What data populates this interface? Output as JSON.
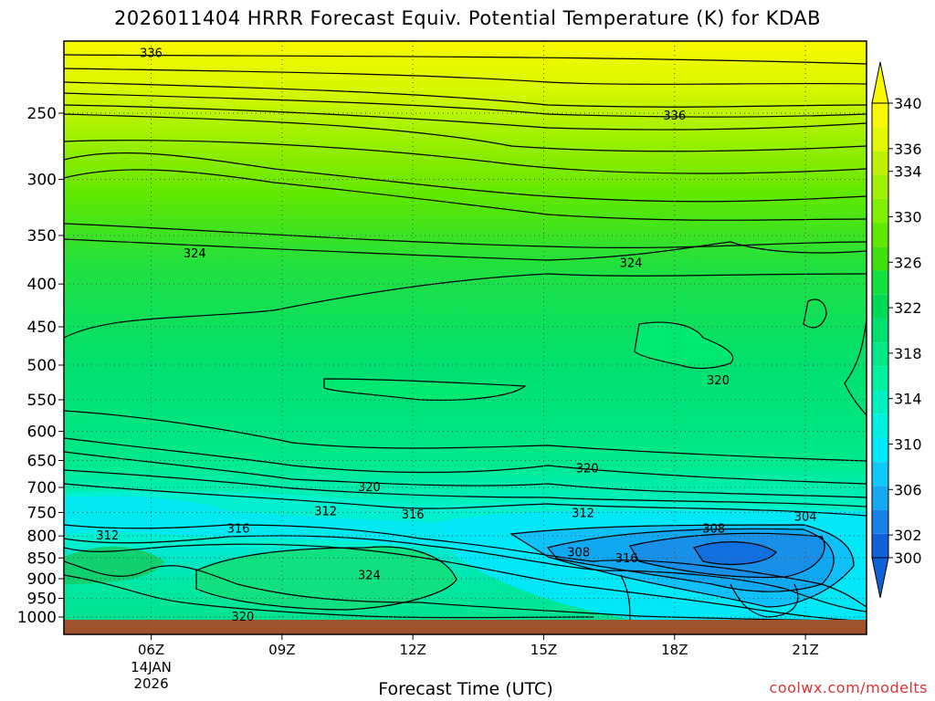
{
  "chart_data": {
    "type": "heatmap",
    "title": "2026011404 HRRR Forecast Equiv. Potential Temperature (K) for KDAB",
    "xlabel": "Forecast Time (UTC)",
    "ylabel": "",
    "y_axis_scale": "log (pressure, hPa), inverted",
    "ylim": [
      1000,
      200
    ],
    "y_ticks": [
      250,
      300,
      350,
      400,
      450,
      500,
      550,
      600,
      650,
      700,
      750,
      800,
      850,
      900,
      950,
      1000
    ],
    "x_ticks": [
      {
        "label": "06Z",
        "sub": "14JAN",
        "sub2": "2026"
      },
      {
        "label": "09Z"
      },
      {
        "label": "12Z"
      },
      {
        "label": "15Z"
      },
      {
        "label": "18Z"
      },
      {
        "label": "21Z"
      }
    ],
    "grid": "dotted",
    "colorbar": {
      "placement": "right",
      "levels": [
        300,
        302,
        304,
        306,
        308,
        310,
        312,
        314,
        316,
        318,
        320,
        322,
        324,
        326,
        328,
        330,
        332,
        334,
        336,
        338,
        340
      ],
      "tick_labels": [
        300,
        302,
        306,
        310,
        314,
        318,
        322,
        326,
        330,
        334,
        336,
        340
      ],
      "colors": [
        "#1060d8",
        "#1880e8",
        "#18a8f0",
        "#10c8f8",
        "#00e8f8",
        "#00f0e0",
        "#00f0c0",
        "#00f0a0",
        "#00e888",
        "#00e070",
        "#00d858",
        "#10e040",
        "#40e010",
        "#60e800",
        "#80f000",
        "#a0f000",
        "#c0f000",
        "#e0f800",
        "#f8f800"
      ],
      "extend": "both"
    },
    "contour_labels": [
      {
        "value": "336",
        "t": 6,
        "p": 212
      },
      {
        "value": "336",
        "t": 18,
        "p": 252
      },
      {
        "value": "324",
        "t": 7,
        "p": 368
      },
      {
        "value": "324",
        "t": 17,
        "p": 378
      },
      {
        "value": "320",
        "t": 19,
        "p": 522
      },
      {
        "value": "320",
        "t": 16,
        "p": 665
      },
      {
        "value": "320",
        "t": 11,
        "p": 700
      },
      {
        "value": "312",
        "t": 10,
        "p": 748
      },
      {
        "value": "312",
        "t": 15.9,
        "p": 752
      },
      {
        "value": "312",
        "t": 5,
        "p": 800
      },
      {
        "value": "316",
        "t": 8,
        "p": 785
      },
      {
        "value": "316",
        "t": 12,
        "p": 755
      },
      {
        "value": "316",
        "t": 16.9,
        "p": 852
      },
      {
        "value": "308",
        "t": 15.8,
        "p": 838
      },
      {
        "value": "308",
        "t": 18.9,
        "p": 785
      },
      {
        "value": "304",
        "t": 21,
        "p": 760
      },
      {
        "value": "324",
        "t": 11,
        "p": 892
      },
      {
        "value": "320",
        "t": 8.1,
        "p": 1000
      }
    ]
  }
}
